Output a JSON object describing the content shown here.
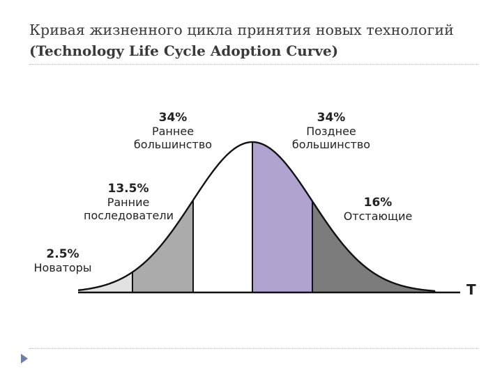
{
  "title": {
    "line1": "Кривая жизненного цикла принятия новых технологий",
    "line2": "(Technology Life Cycle Adoption Curve)"
  },
  "axis_label": "T",
  "segments": [
    {
      "id": "innovators",
      "percent": "2.5%",
      "name": "Новаторы",
      "color": "#e2e2e2"
    },
    {
      "id": "early-adopters",
      "percent": "13.5%",
      "name": "Ранние последователи",
      "color": "#ababab"
    },
    {
      "id": "early-majority",
      "percent": "34%",
      "name": "Раннее большинство",
      "color": "#ffffff"
    },
    {
      "id": "late-majority",
      "percent": "34%",
      "name": "Позднее большинство",
      "color": "#b1a3d0"
    },
    {
      "id": "laggards",
      "percent": "16%",
      "name": "Отстающие",
      "color": "#7c7c7c"
    }
  ],
  "labels": {
    "innovators": {
      "percent": "2.5%",
      "line1": "Новаторы",
      "line2": ""
    },
    "early_adopters": {
      "percent": "13.5%",
      "line1": "Ранние",
      "line2": "последователи"
    },
    "early_majority": {
      "percent": "34%",
      "line1": "Раннее",
      "line2": "большинство"
    },
    "late_majority": {
      "percent": "34%",
      "line1": "Позднее",
      "line2": "большинство"
    },
    "laggards": {
      "percent": "16%",
      "line1": "Отстающие",
      "line2": ""
    }
  },
  "colors": {
    "curve": "#111111",
    "innovators": "#e2e2e2",
    "early_adopters": "#ababab",
    "early_majority": "#ffffff",
    "late_majority": "#b1a3d0",
    "laggards": "#7c7c7c"
  }
}
